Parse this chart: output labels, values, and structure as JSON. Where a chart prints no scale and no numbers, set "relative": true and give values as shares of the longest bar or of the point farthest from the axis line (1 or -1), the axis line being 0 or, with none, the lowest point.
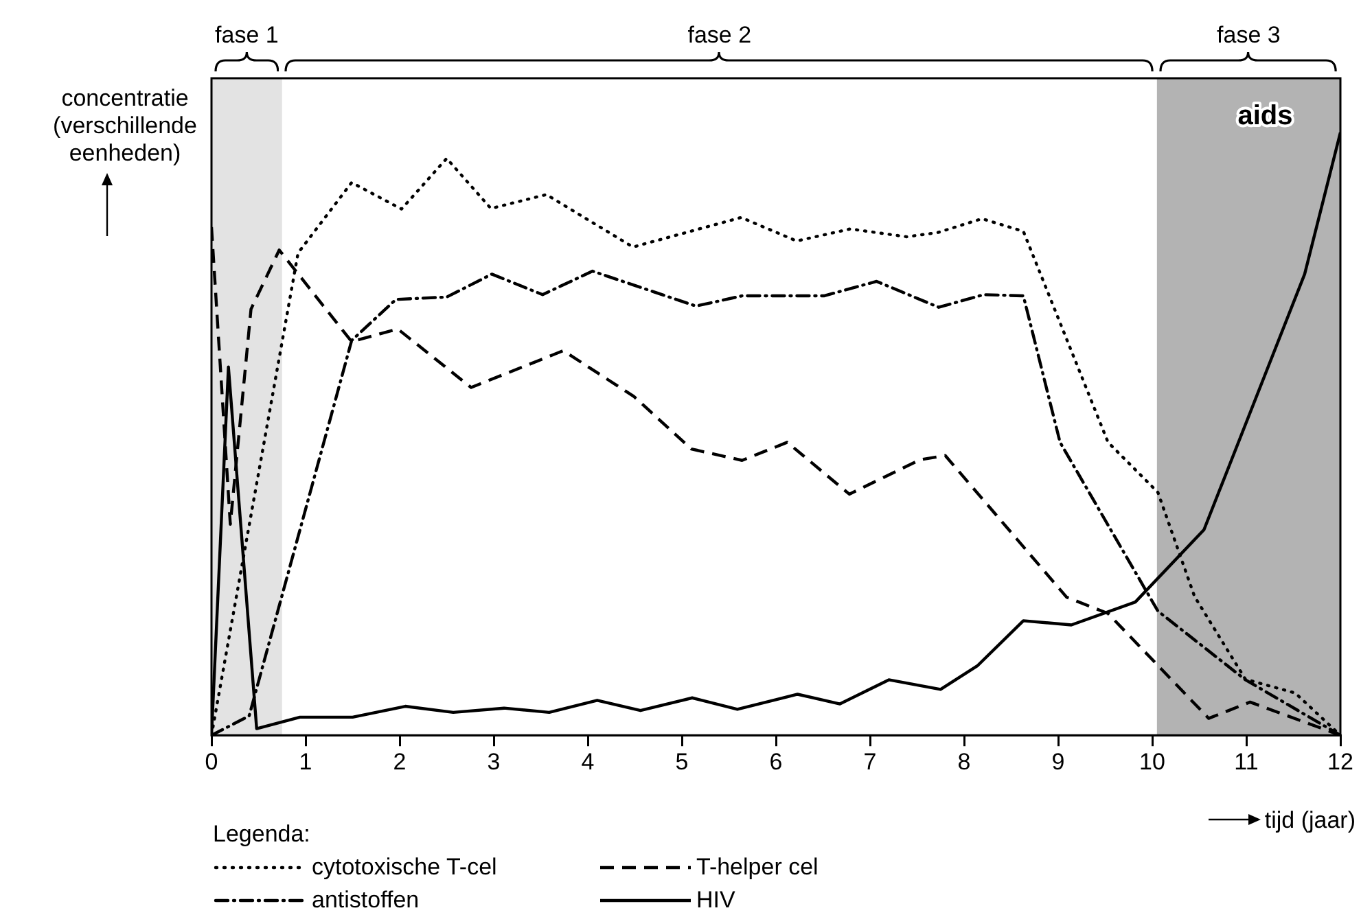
{
  "chart_data": {
    "type": "line",
    "relative": true,
    "ylabel": "concentratie (verschillende eenheden)",
    "xlabel": "tijd (jaar)",
    "legend_title": "Legenda:",
    "legend": "bottom",
    "grid": false,
    "marker": "none",
    "xlim": [
      0,
      12
    ],
    "xticks": [
      0,
      1,
      2,
      3,
      4,
      5,
      6,
      7,
      8,
      9,
      10,
      11,
      12
    ],
    "series": [
      {
        "name": "cytotoxische T-cel",
        "color": "#000000",
        "line_style": "dotted",
        "x": [
          0,
          0.92,
          1.49,
          2.02,
          2.5,
          2.97,
          3.56,
          4.48,
          5.63,
          6.22,
          6.79,
          7.39,
          7.72,
          8.19,
          8.63,
          9.53,
          10.06,
          10.45,
          10.99,
          11.52,
          12
        ],
        "values": [
          0,
          0.8,
          0.917,
          0.873,
          0.957,
          0.874,
          0.897,
          0.81,
          0.859,
          0.82,
          0.84,
          0.827,
          0.834,
          0.857,
          0.836,
          0.486,
          0.403,
          0.23,
          0.093,
          0.07,
          0
        ]
      },
      {
        "name": "T-helper cel",
        "color": "#000000",
        "line_style": "dashed",
        "x": [
          0,
          0.2,
          0.42,
          0.72,
          1.49,
          1.98,
          2.76,
          3.74,
          4.49,
          5.1,
          5.64,
          6.12,
          6.78,
          7.53,
          7.8,
          9.09,
          9.53,
          10.6,
          11.04,
          12
        ],
        "values": [
          0.843,
          0.35,
          0.707,
          0.805,
          0.653,
          0.674,
          0.577,
          0.638,
          0.562,
          0.475,
          0.456,
          0.486,
          0.4,
          0.457,
          0.464,
          0.229,
          0.202,
          0.028,
          0.055,
          0
        ]
      },
      {
        "name": "antistoffen",
        "color": "#000000",
        "line_style": "dashdot",
        "x": [
          0,
          0.4,
          1.49,
          1.96,
          2.5,
          2.98,
          3.52,
          4.05,
          5.15,
          5.64,
          6.51,
          7.07,
          7.73,
          8.21,
          8.63,
          9.02,
          10.06,
          10.99,
          12
        ],
        "values": [
          0,
          0.032,
          0.655,
          0.723,
          0.727,
          0.765,
          0.731,
          0.77,
          0.712,
          0.729,
          0.729,
          0.753,
          0.71,
          0.731,
          0.729,
          0.486,
          0.206,
          0.092,
          0
        ]
      },
      {
        "name": "HIV",
        "color": "#000000",
        "line_style": "solid",
        "x": [
          0,
          0.18,
          0.48,
          0.94,
          1.5,
          2.06,
          2.57,
          3.11,
          3.59,
          4.1,
          4.56,
          5.11,
          5.59,
          6.23,
          6.68,
          7.2,
          7.75,
          8.14,
          8.63,
          9.14,
          9.82,
          10.55,
          11.62,
          12
        ],
        "values": [
          0,
          0.611,
          0.011,
          0.03,
          0.03,
          0.048,
          0.038,
          0.045,
          0.038,
          0.058,
          0.041,
          0.062,
          0.043,
          0.068,
          0.052,
          0.092,
          0.076,
          0.115,
          0.19,
          0.183,
          0.221,
          0.341,
          0.765,
          1
        ]
      }
    ],
    "bands": [
      {
        "axis": "x",
        "from": 0,
        "to": 0.75,
        "label": "fase 1",
        "color": "#e3e3e3"
      },
      {
        "axis": "x",
        "from": 10.05,
        "to": 12,
        "label": "fase 3",
        "color": "#b3b3b3"
      }
    ],
    "annotations": [
      "fase 2",
      "aids"
    ]
  }
}
